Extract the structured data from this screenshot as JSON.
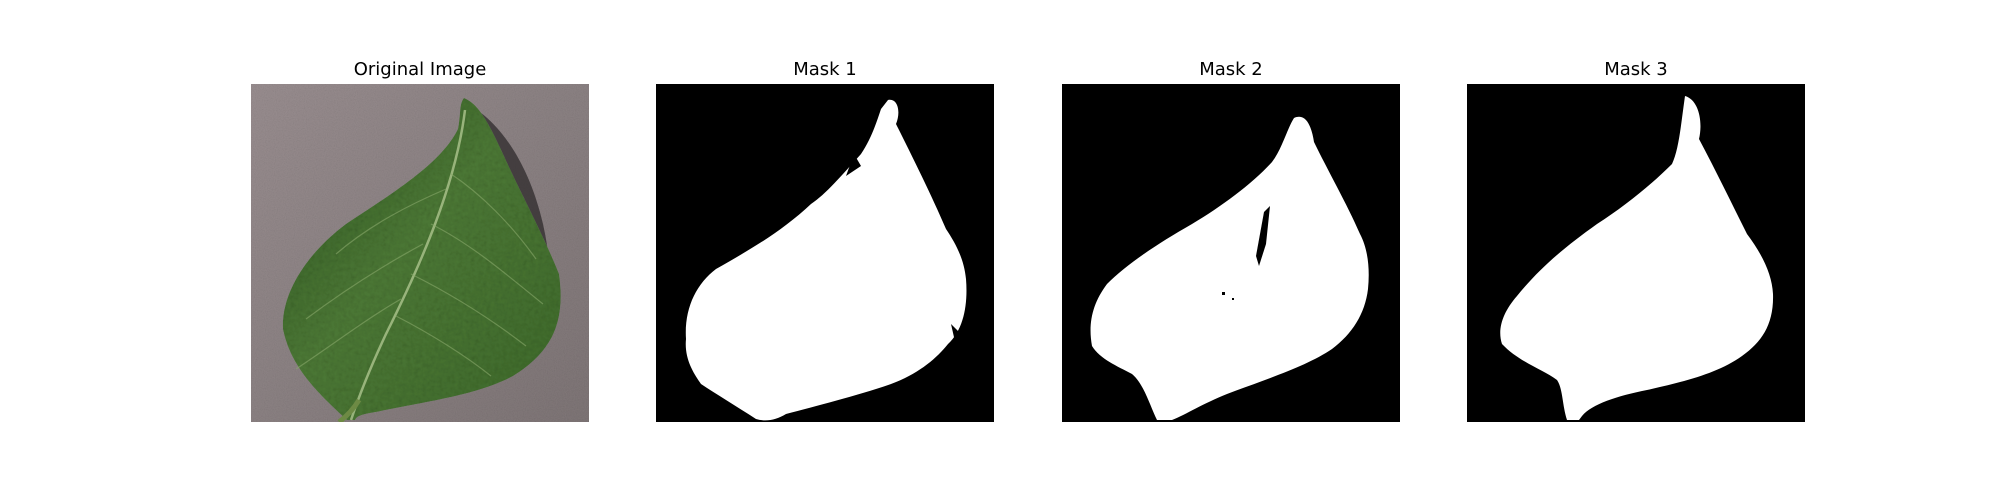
{
  "panels": [
    {
      "title": "Original Image"
    },
    {
      "title": "Mask 1"
    },
    {
      "title": "Mask 2"
    },
    {
      "title": "Mask 3"
    }
  ],
  "colors": {
    "background": "#ffffff",
    "mask_background": "#000000",
    "mask_foreground": "#ffffff",
    "leaf_green": "#3f6b2c",
    "surface_gray": "#8e8485"
  }
}
